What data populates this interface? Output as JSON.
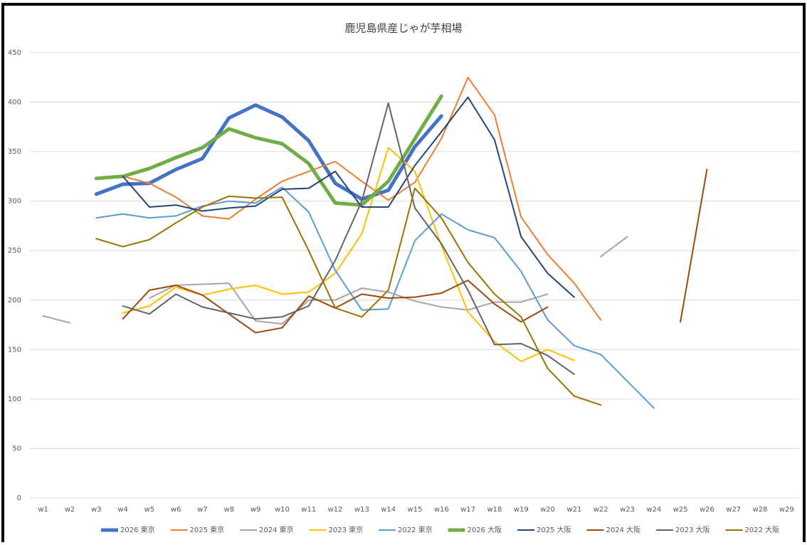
{
  "chart_data": {
    "type": "line",
    "title": "鹿児島県産じゃが芋相場",
    "categories": [
      "w1",
      "w2",
      "w3",
      "w4",
      "w5",
      "w6",
      "w7",
      "w8",
      "w9",
      "w10",
      "w11",
      "w12",
      "w13",
      "w14",
      "w15",
      "w16",
      "w17",
      "w18",
      "w19",
      "w20",
      "w21",
      "w22",
      "w23",
      "w24",
      "w25",
      "w26",
      "w27",
      "w28",
      "w29"
    ],
    "ylim": [
      0,
      450
    ],
    "yticks": [
      0,
      50,
      100,
      150,
      200,
      250,
      300,
      350,
      400,
      450
    ],
    "grid": true,
    "legend": "bottom",
    "series": [
      {
        "name": "2026 東京",
        "color": "#4472c4",
        "width": 5,
        "values": [
          null,
          null,
          307,
          317,
          318,
          332,
          343,
          384,
          397,
          385,
          361,
          318,
          302,
          311,
          355,
          386,
          null,
          null,
          null,
          null,
          null,
          null,
          null,
          null,
          null,
          null,
          null,
          null,
          null
        ]
      },
      {
        "name": "2025 東京",
        "color": "#ed7d31",
        "width": 2,
        "values": [
          null,
          null,
          null,
          325,
          318,
          304,
          285,
          282,
          302,
          320,
          330,
          340,
          320,
          301,
          319,
          363,
          425,
          387,
          284,
          246,
          217,
          180,
          null,
          null,
          null,
          null,
          null,
          null,
          null
        ]
      },
      {
        "name": "2024 東京",
        "color": "#a5a5a5",
        "width": 2,
        "values": [
          184,
          177,
          null,
          null,
          202,
          215,
          216,
          217,
          179,
          176,
          200,
          200,
          212,
          208,
          199,
          193,
          190,
          198,
          198,
          206,
          null,
          244,
          264,
          null,
          null,
          null,
          null,
          null,
          null
        ]
      },
      {
        "name": "2023 東京",
        "color": "#ffc000",
        "width": 2,
        "values": [
          null,
          null,
          null,
          187,
          194,
          213,
          205,
          211,
          215,
          206,
          208,
          227,
          267,
          354,
          330,
          255,
          188,
          158,
          138,
          150,
          139,
          null,
          null,
          null,
          null,
          null,
          null,
          null,
          null
        ]
      },
      {
        "name": "2022 東京",
        "color": "#5b9bd5",
        "width": 2,
        "values": [
          null,
          null,
          283,
          287,
          283,
          285,
          295,
          300,
          298,
          314,
          289,
          230,
          190,
          191,
          260,
          287,
          271,
          263,
          229,
          180,
          154,
          145,
          118,
          91,
          null,
          null,
          null,
          null,
          null
        ]
      },
      {
        "name": "2026 大阪",
        "color": "#70ad47",
        "width": 5,
        "values": [
          null,
          null,
          323,
          325,
          333,
          344,
          354,
          373,
          364,
          358,
          338,
          298,
          296,
          320,
          363,
          406,
          null,
          null,
          null,
          null,
          null,
          null,
          null,
          null,
          null,
          null,
          null,
          null,
          null
        ]
      },
      {
        "name": "2025 大阪",
        "color": "#264478",
        "width": 2,
        "values": [
          null,
          null,
          null,
          325,
          294,
          296,
          290,
          293,
          295,
          312,
          313,
          330,
          294,
          294,
          336,
          370,
          405,
          362,
          264,
          227,
          203,
          null,
          null,
          null,
          null,
          null,
          null,
          null,
          null
        ]
      },
      {
        "name": "2024 大阪",
        "color": "#9e480e",
        "width": 2,
        "values": [
          null,
          null,
          null,
          181,
          210,
          215,
          205,
          186,
          167,
          172,
          204,
          192,
          206,
          202,
          203,
          207,
          220,
          196,
          178,
          193,
          null,
          null,
          null,
          null,
          178,
          332,
          null,
          null,
          null
        ]
      },
      {
        "name": "2023 大阪",
        "color": "#636363",
        "width": 2,
        "values": [
          null,
          null,
          null,
          194,
          186,
          206,
          193,
          187,
          181,
          183,
          194,
          240,
          300,
          399,
          293,
          257,
          210,
          155,
          156,
          144,
          125,
          null,
          null,
          null,
          null,
          null,
          null,
          null,
          null
        ]
      },
      {
        "name": "2022 大阪",
        "color": "#997300",
        "width": 2,
        "values": [
          null,
          null,
          262,
          254,
          261,
          278,
          294,
          305,
          303,
          304,
          250,
          192,
          183,
          210,
          313,
          283,
          238,
          206,
          183,
          131,
          103,
          94,
          null,
          null,
          null,
          null,
          null,
          null,
          null
        ]
      }
    ]
  }
}
